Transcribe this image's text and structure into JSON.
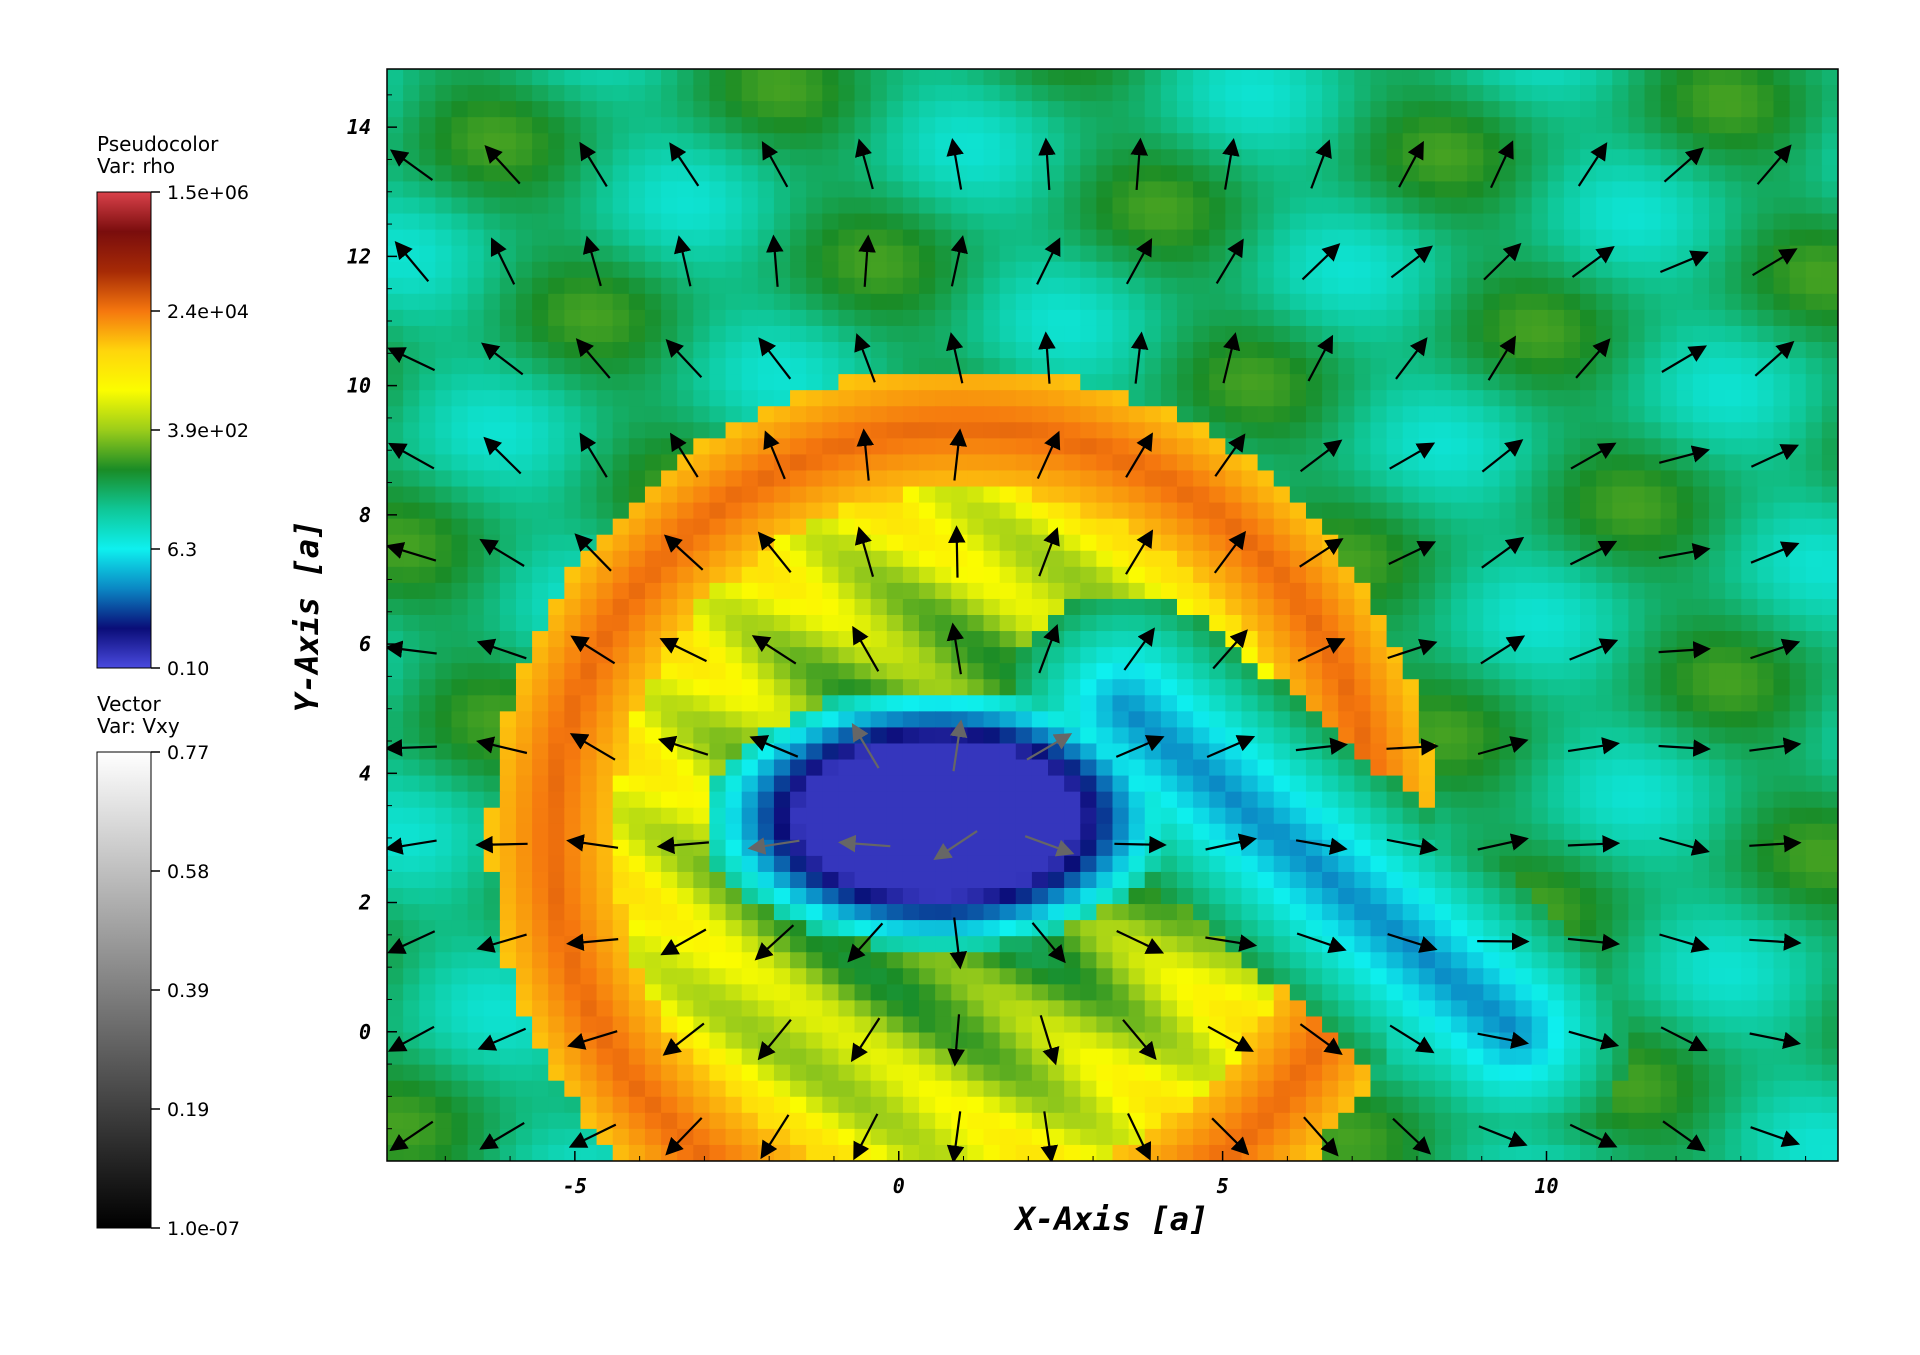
{
  "chart_data": {
    "type": "heatmap",
    "xlabel": "X-Axis [a]",
    "ylabel": "Y-Axis [a]",
    "xlim": [
      -7.9,
      14.5
    ],
    "ylim": [
      -2.0,
      14.9
    ],
    "xticks": [
      "-5",
      "0",
      "5",
      "10"
    ],
    "xtick_values": [
      -5,
      0,
      5,
      10
    ],
    "yticks": [
      "0",
      "2",
      "4",
      "6",
      "8",
      "10",
      "12",
      "14"
    ],
    "ytick_values": [
      0,
      2,
      4,
      6,
      8,
      10,
      12,
      14
    ],
    "scale": "log",
    "pseudocolor": {
      "line1": "Pseudocolor",
      "line2": "Var: rho",
      "tick_labels": [
        "1.5e+06",
        "2.4e+04",
        "3.9e+02",
        "6.3",
        "0.10"
      ],
      "colors": [
        "#d9414a",
        "#7a0d0d",
        "#a62a06",
        "#f5770e",
        "#ffd50c",
        "#fbfd00",
        "#9bcd1a",
        "#1a8c26",
        "#0fc797",
        "#0ef0ef",
        "#0b87c4",
        "#0a0d78",
        "#4a4adf"
      ]
    },
    "vector": {
      "line1": "Vector",
      "line2": "Var: Vxy",
      "tick_labels": [
        "0.77",
        "0.58",
        "0.39",
        "0.19",
        "1.0e-07"
      ]
    },
    "density_features": [
      {
        "kind": "shell",
        "cx": 1.0,
        "cy": 3.0,
        "r": 7.3,
        "width": 1.9,
        "value": 4.5
      },
      {
        "kind": "cavity",
        "cx": 0.6,
        "cy": 3.3,
        "rx": 2.7,
        "ry": 1.5,
        "value": -0.8
      },
      {
        "kind": "tail",
        "x1": 3.5,
        "y1": 5.0,
        "x2": 9.5,
        "y2": 0.0,
        "width": 1.8,
        "value": 0.2
      }
    ],
    "vectors_note": "Velocity field arrows on grid",
    "vector_grid": {
      "x_step": 1.4,
      "y_step": 1.5
    }
  }
}
